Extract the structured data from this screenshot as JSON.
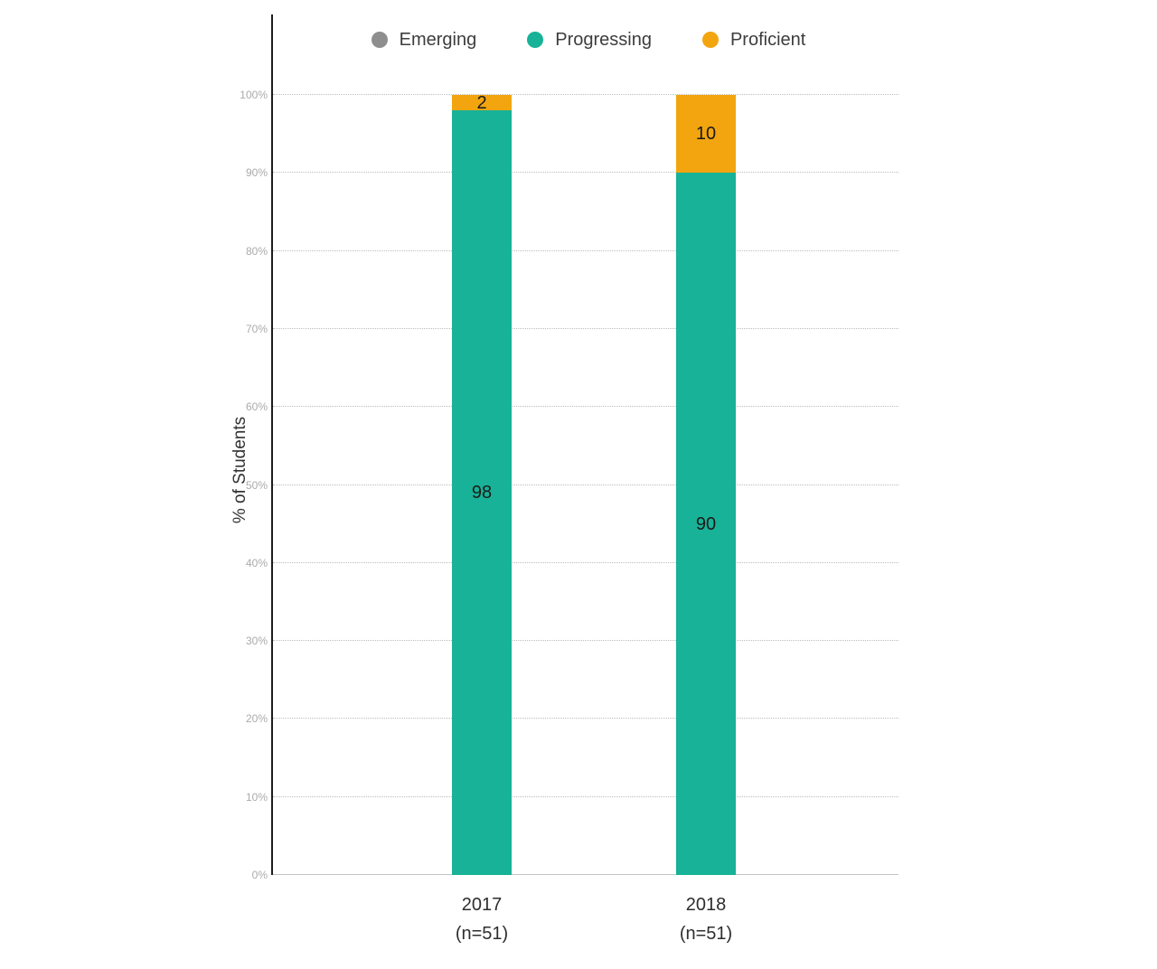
{
  "chart_data": {
    "type": "bar",
    "stacked": true,
    "title": "",
    "xlabel": "",
    "ylabel": "% of Students",
    "ylim": [
      0,
      100
    ],
    "yticks": [
      "0%",
      "10%",
      "20%",
      "30%",
      "40%",
      "50%",
      "60%",
      "70%",
      "80%",
      "90%",
      "100%"
    ],
    "grid": "dotted horizontal",
    "legend_position": "top",
    "categories": [
      "2017",
      "2018"
    ],
    "category_sublabels": [
      "(n=51)",
      "(n=51)"
    ],
    "series": [
      {
        "name": "Emerging",
        "color": "#8e8e8e",
        "values": [
          0,
          0
        ]
      },
      {
        "name": "Progressing",
        "color": "#17b297",
        "values": [
          98,
          90
        ]
      },
      {
        "name": "Proficient",
        "color": "#f2a50f",
        "values": [
          2,
          10
        ]
      }
    ]
  }
}
